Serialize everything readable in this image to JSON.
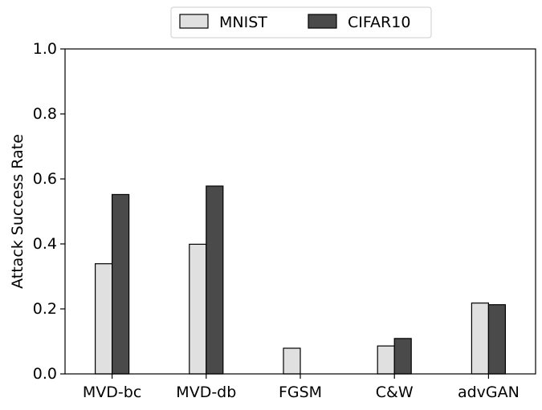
{
  "chart_data": {
    "type": "bar",
    "title": "",
    "xlabel": "",
    "ylabel": "Attack Success Rate",
    "ylim": [
      0,
      1.0
    ],
    "yticks": [
      "0.0",
      "0.2",
      "0.4",
      "0.6",
      "0.8",
      "1.0"
    ],
    "categories": [
      "MVD-bc",
      "MVD-db",
      "FGSM",
      "C&W",
      "advGAN"
    ],
    "series": [
      {
        "name": "MNIST",
        "color": "#e0e0e0",
        "values": [
          0.339,
          0.399,
          0.079,
          0.086,
          0.218
        ]
      },
      {
        "name": "CIFAR10",
        "color": "#4a4a4a",
        "values": [
          0.552,
          0.578,
          0.0,
          0.109,
          0.213
        ]
      }
    ],
    "legend_position": "top-center",
    "grid": false
  }
}
